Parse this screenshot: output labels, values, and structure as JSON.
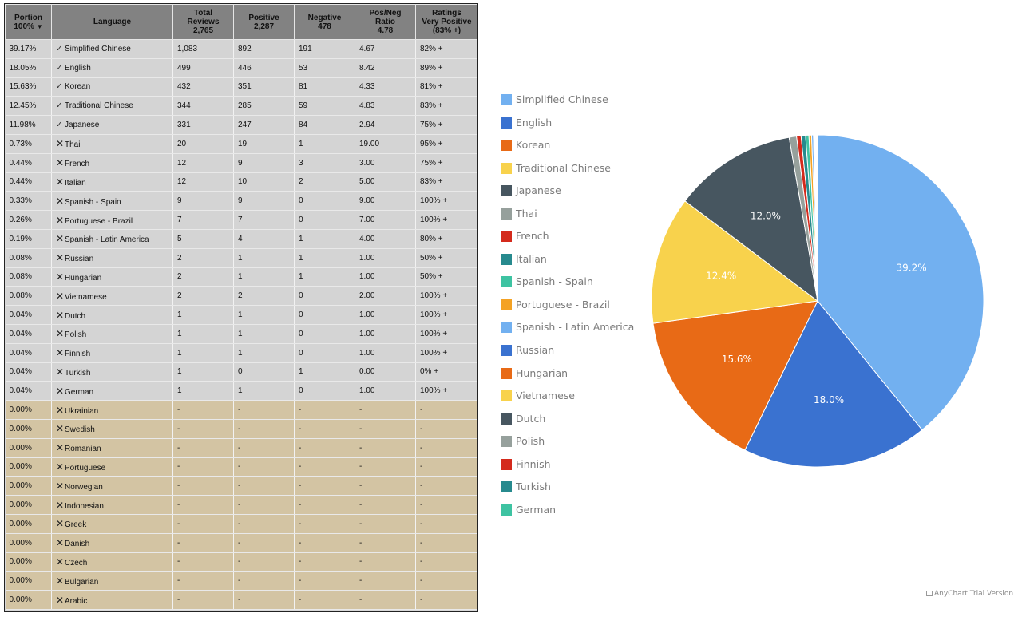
{
  "table": {
    "headers": {
      "portion": [
        "Portion",
        "100%"
      ],
      "sort_indicator": "▼",
      "language": [
        "Language"
      ],
      "total": [
        "Total",
        "Reviews",
        "2,765"
      ],
      "positive": [
        "Positive",
        "2,287"
      ],
      "negative": [
        "Negative",
        "478"
      ],
      "ratio": [
        "Pos/Neg",
        "Ratio",
        "4.78"
      ],
      "rating": [
        "Ratings",
        "Very Positive",
        "(83% +)"
      ]
    },
    "rows": [
      {
        "portion": "39.17%",
        "supported": true,
        "language": "Simplified Chinese",
        "total": "1,083",
        "positive": "892",
        "negative": "191",
        "ratio": "4.67",
        "rating": "82% +"
      },
      {
        "portion": "18.05%",
        "supported": true,
        "language": "English",
        "total": "499",
        "positive": "446",
        "negative": "53",
        "ratio": "8.42",
        "rating": "89% +"
      },
      {
        "portion": "15.63%",
        "supported": true,
        "language": "Korean",
        "total": "432",
        "positive": "351",
        "negative": "81",
        "ratio": "4.33",
        "rating": "81% +"
      },
      {
        "portion": "12.45%",
        "supported": true,
        "language": "Traditional Chinese",
        "total": "344",
        "positive": "285",
        "negative": "59",
        "ratio": "4.83",
        "rating": "83% +"
      },
      {
        "portion": "11.98%",
        "supported": true,
        "language": "Japanese",
        "total": "331",
        "positive": "247",
        "negative": "84",
        "ratio": "2.94",
        "rating": "75% +"
      },
      {
        "portion": "0.73%",
        "supported": false,
        "language": "Thai",
        "total": "20",
        "positive": "19",
        "negative": "1",
        "ratio": "19.00",
        "rating": "95% +"
      },
      {
        "portion": "0.44%",
        "supported": false,
        "language": "French",
        "total": "12",
        "positive": "9",
        "negative": "3",
        "ratio": "3.00",
        "rating": "75% +"
      },
      {
        "portion": "0.44%",
        "supported": false,
        "language": "Italian",
        "total": "12",
        "positive": "10",
        "negative": "2",
        "ratio": "5.00",
        "rating": "83% +"
      },
      {
        "portion": "0.33%",
        "supported": false,
        "language": "Spanish - Spain",
        "total": "9",
        "positive": "9",
        "negative": "0",
        "ratio": "9.00",
        "rating": "100% +"
      },
      {
        "portion": "0.26%",
        "supported": false,
        "language": "Portuguese - Brazil",
        "total": "7",
        "positive": "7",
        "negative": "0",
        "ratio": "7.00",
        "rating": "100% +"
      },
      {
        "portion": "0.19%",
        "supported": false,
        "language": "Spanish - Latin America",
        "total": "5",
        "positive": "4",
        "negative": "1",
        "ratio": "4.00",
        "rating": "80% +"
      },
      {
        "portion": "0.08%",
        "supported": false,
        "language": "Russian",
        "total": "2",
        "positive": "1",
        "negative": "1",
        "ratio": "1.00",
        "rating": "50% +"
      },
      {
        "portion": "0.08%",
        "supported": false,
        "language": "Hungarian",
        "total": "2",
        "positive": "1",
        "negative": "1",
        "ratio": "1.00",
        "rating": "50% +"
      },
      {
        "portion": "0.08%",
        "supported": false,
        "language": "Vietnamese",
        "total": "2",
        "positive": "2",
        "negative": "0",
        "ratio": "2.00",
        "rating": "100% +"
      },
      {
        "portion": "0.04%",
        "supported": false,
        "language": "Dutch",
        "total": "1",
        "positive": "1",
        "negative": "0",
        "ratio": "1.00",
        "rating": "100% +"
      },
      {
        "portion": "0.04%",
        "supported": false,
        "language": "Polish",
        "total": "1",
        "positive": "1",
        "negative": "0",
        "ratio": "1.00",
        "rating": "100% +"
      },
      {
        "portion": "0.04%",
        "supported": false,
        "language": "Finnish",
        "total": "1",
        "positive": "1",
        "negative": "0",
        "ratio": "1.00",
        "rating": "100% +"
      },
      {
        "portion": "0.04%",
        "supported": false,
        "language": "Turkish",
        "total": "1",
        "positive": "0",
        "negative": "1",
        "ratio": "0.00",
        "rating": "0% +"
      },
      {
        "portion": "0.04%",
        "supported": false,
        "language": "German",
        "total": "1",
        "positive": "1",
        "negative": "0",
        "ratio": "1.00",
        "rating": "100% +"
      },
      {
        "portion": "0.00%",
        "supported": false,
        "language": "Ukrainian",
        "total": "-",
        "positive": "-",
        "negative": "-",
        "ratio": "-",
        "rating": "-"
      },
      {
        "portion": "0.00%",
        "supported": false,
        "language": "Swedish",
        "total": "-",
        "positive": "-",
        "negative": "-",
        "ratio": "-",
        "rating": "-"
      },
      {
        "portion": "0.00%",
        "supported": false,
        "language": "Romanian",
        "total": "-",
        "positive": "-",
        "negative": "-",
        "ratio": "-",
        "rating": "-"
      },
      {
        "portion": "0.00%",
        "supported": false,
        "language": "Portuguese",
        "total": "-",
        "positive": "-",
        "negative": "-",
        "ratio": "-",
        "rating": "-"
      },
      {
        "portion": "0.00%",
        "supported": false,
        "language": "Norwegian",
        "total": "-",
        "positive": "-",
        "negative": "-",
        "ratio": "-",
        "rating": "-"
      },
      {
        "portion": "0.00%",
        "supported": false,
        "language": "Indonesian",
        "total": "-",
        "positive": "-",
        "negative": "-",
        "ratio": "-",
        "rating": "-"
      },
      {
        "portion": "0.00%",
        "supported": false,
        "language": "Greek",
        "total": "-",
        "positive": "-",
        "negative": "-",
        "ratio": "-",
        "rating": "-"
      },
      {
        "portion": "0.00%",
        "supported": false,
        "language": "Danish",
        "total": "-",
        "positive": "-",
        "negative": "-",
        "ratio": "-",
        "rating": "-"
      },
      {
        "portion": "0.00%",
        "supported": false,
        "language": "Czech",
        "total": "-",
        "positive": "-",
        "negative": "-",
        "ratio": "-",
        "rating": "-"
      },
      {
        "portion": "0.00%",
        "supported": false,
        "language": "Bulgarian",
        "total": "-",
        "positive": "-",
        "negative": "-",
        "ratio": "-",
        "rating": "-"
      },
      {
        "portion": "0.00%",
        "supported": false,
        "language": "Arabic",
        "total": "-",
        "positive": "-",
        "negative": "-",
        "ratio": "-",
        "rating": "-"
      }
    ]
  },
  "chart_data": {
    "type": "pie",
    "legend_position": "left",
    "slices": [
      {
        "label": "Simplified Chinese",
        "value": 1083,
        "color": "#72b0f0",
        "percent_label": "39.2%"
      },
      {
        "label": "English",
        "value": 499,
        "color": "#3a72d0",
        "percent_label": "18.0%"
      },
      {
        "label": "Korean",
        "value": 432,
        "color": "#e86a16",
        "percent_label": "15.6%"
      },
      {
        "label": "Traditional Chinese",
        "value": 344,
        "color": "#f8d24c",
        "percent_label": "12.4%"
      },
      {
        "label": "Japanese",
        "value": 331,
        "color": "#475660",
        "percent_label": "12.0%"
      },
      {
        "label": "Thai",
        "value": 20,
        "color": "#96a09c"
      },
      {
        "label": "French",
        "value": 12,
        "color": "#d42a1c"
      },
      {
        "label": "Italian",
        "value": 12,
        "color": "#278a8e"
      },
      {
        "label": "Spanish - Spain",
        "value": 9,
        "color": "#3ec3a2"
      },
      {
        "label": "Portuguese - Brazil",
        "value": 7,
        "color": "#f4a224"
      },
      {
        "label": "Spanish - Latin America",
        "value": 5,
        "color": "#72b0f0"
      },
      {
        "label": "Russian",
        "value": 2,
        "color": "#3a72d0"
      },
      {
        "label": "Hungarian",
        "value": 2,
        "color": "#e86a16"
      },
      {
        "label": "Vietnamese",
        "value": 2,
        "color": "#f8d24c"
      },
      {
        "label": "Dutch",
        "value": 1,
        "color": "#475660"
      },
      {
        "label": "Polish",
        "value": 1,
        "color": "#96a09c"
      },
      {
        "label": "Finnish",
        "value": 1,
        "color": "#d42a1c"
      },
      {
        "label": "Turkish",
        "value": 1,
        "color": "#278a8e"
      },
      {
        "label": "German",
        "value": 1,
        "color": "#3ec3a2"
      }
    ]
  },
  "credit": "AnyChart Trial Version"
}
